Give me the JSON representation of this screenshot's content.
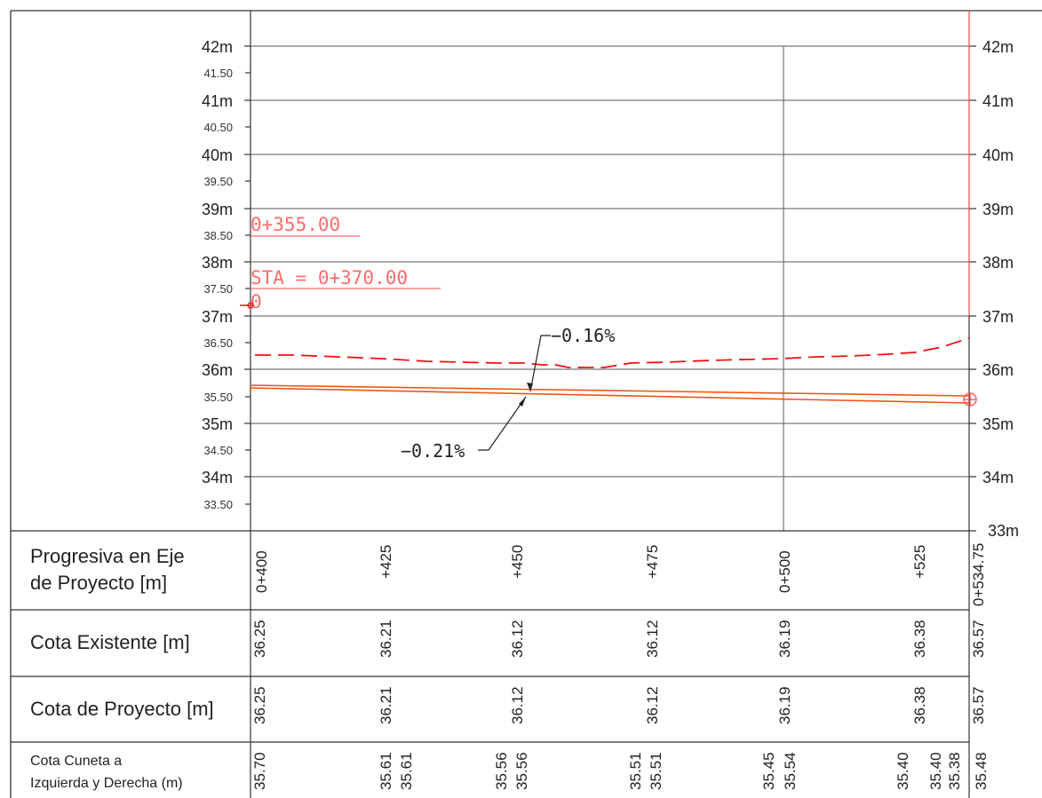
{
  "profile": {
    "elevation_labels_major": [
      "42m",
      "41m",
      "40m",
      "39m",
      "38m",
      "37m",
      "36m",
      "35m",
      "34m",
      "33m"
    ],
    "elevation_labels_minor": [
      "41.50",
      "40.50",
      "39.50",
      "38.50",
      "37.50",
      "36.50",
      "35.50",
      "34.50",
      "33.50"
    ],
    "right_labels": [
      "42m",
      "41m",
      "40m",
      "39m",
      "38m",
      "37m",
      "36m",
      "35m",
      "34m",
      "33m"
    ],
    "station_labels": [
      "0+355.00",
      "STA  =  0+370.00",
      "0"
    ],
    "grade_labels": [
      "−0.16%",
      "−0.21%"
    ],
    "colors": {
      "grid": "#777777",
      "frame": "#333333",
      "existing_ground": "#ee1111",
      "design_line": "#ee5511",
      "station_marker": "#ff6b6b",
      "end_marker": "#ff4444"
    }
  },
  "bands": [
    {
      "title_lines": [
        "Progresiva en Eje",
        "de Proyecto [m]"
      ],
      "values": [
        "0+400",
        "+425",
        "+450",
        "+475",
        "0+500",
        "+525",
        "0+534.75"
      ]
    },
    {
      "title_lines": [
        "Cota Existente [m]"
      ],
      "values": [
        "36.25",
        "36.21",
        "36.12",
        "36.12",
        "36.19",
        "36.38",
        "36.57"
      ]
    },
    {
      "title_lines": [
        "Cota de Proyecto [m]"
      ],
      "values": [
        "36.25",
        "36.21",
        "36.12",
        "36.12",
        "36.19",
        "36.38",
        "36.57"
      ]
    },
    {
      "title_lines": [
        "Cota Cuneta a",
        "Izquierda y Derecha (m)"
      ],
      "values": [
        "35.70",
        "35.61",
        "35.61",
        "35.56",
        "35.56",
        "35.51",
        "35.51",
        "35.45",
        "35.54",
        "35.40",
        "35.40",
        "35.38",
        "35.48"
      ]
    }
  ]
}
